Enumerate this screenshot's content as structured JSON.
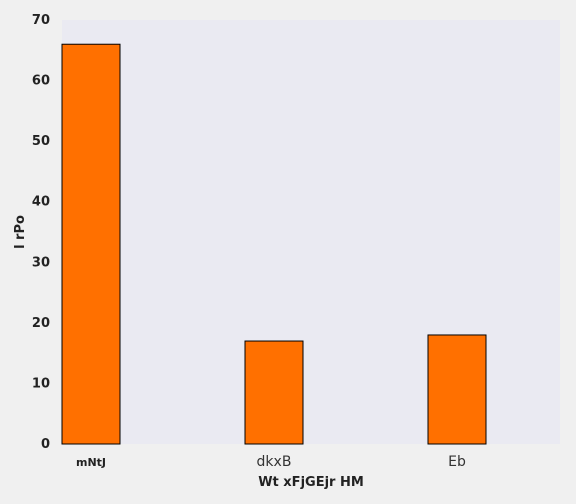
{
  "chart_data": {
    "type": "bar",
    "categories": [
      "mNtJ",
      "dkxB",
      "Eb"
    ],
    "values": [
      66,
      17,
      18
    ],
    "title": "",
    "xlabel": "Wt xFjGEjr HM",
    "ylabel": "l  rPo",
    "ylim": [
      0,
      70
    ],
    "yticks": [
      0,
      10,
      20,
      30,
      40,
      50,
      60,
      70
    ],
    "grid": false,
    "legend": "none"
  },
  "colors": {
    "bar_fill": "#ff7000",
    "bar_edge": "#000000",
    "plot_background": "#eaeaf2",
    "page_background": "#f0f0f0"
  }
}
